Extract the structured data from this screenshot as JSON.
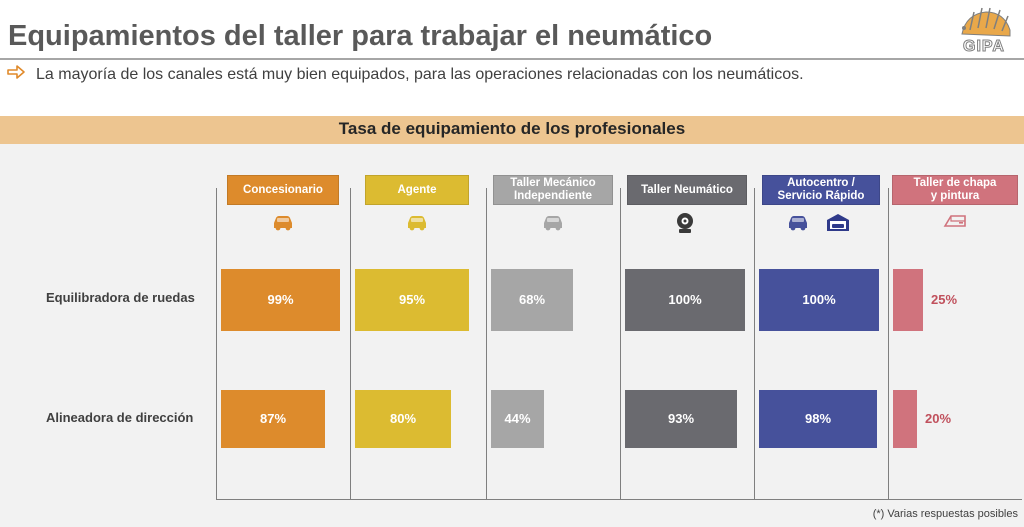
{
  "header": {
    "title": "Equipamientos del taller para trabajar el neumático",
    "subtitle": "La mayoría de los canales está muy bien equipados, para las operaciones relacionadas con los neumáticos.",
    "logo_text": "GIPA"
  },
  "banner": {
    "text": "Tasa de equipamiento de los profesionales"
  },
  "footnote": "(*) Varias respuestas posibles",
  "colors": {
    "concesionario": "#dd8b2c",
    "agente": "#dcbb31",
    "taller_mecanico": "#a6a6a6",
    "taller_neumatico": "#6a6a6f",
    "autocentro": "#46519b",
    "taller_chapa": "#d0737d",
    "banner": "#edc590",
    "panel": "#f2f2f2"
  },
  "chart_data": {
    "type": "bar",
    "title": "Tasa de equipamiento de los profesionales",
    "orientation": "horizontal",
    "unit": "%",
    "ylim": [
      0,
      100
    ],
    "categories": [
      "Equilibradora de ruedas",
      "Alineadora de dirección"
    ],
    "series": [
      {
        "name": "Concesionario",
        "values": [
          99,
          87
        ],
        "labels": [
          "99%",
          "87%"
        ],
        "icon": "car-wrench-icon"
      },
      {
        "name": "Agente",
        "values": [
          95,
          80
        ],
        "labels": [
          "95%",
          "80%"
        ],
        "icon": "car-wrench-icon"
      },
      {
        "name": "Taller Mecánico Independiente",
        "values": [
          68,
          44
        ],
        "labels": [
          "68%",
          "44%"
        ],
        "icon": "car-wrench-icon"
      },
      {
        "name": "Taller Neumático",
        "values": [
          100,
          93
        ],
        "labels": [
          "100%",
          "93%"
        ],
        "icon": "tire-icon"
      },
      {
        "name": "Autocentro / Servicio Rápido",
        "values": [
          100,
          98
        ],
        "labels": [
          "100%",
          "98%"
        ],
        "icon": "car-wrench-and-garage-icon"
      },
      {
        "name": "Taller de chapa y pintura",
        "values": [
          25,
          20
        ],
        "labels": [
          "25%",
          "20%"
        ],
        "icon": "car-door-icon"
      }
    ]
  }
}
